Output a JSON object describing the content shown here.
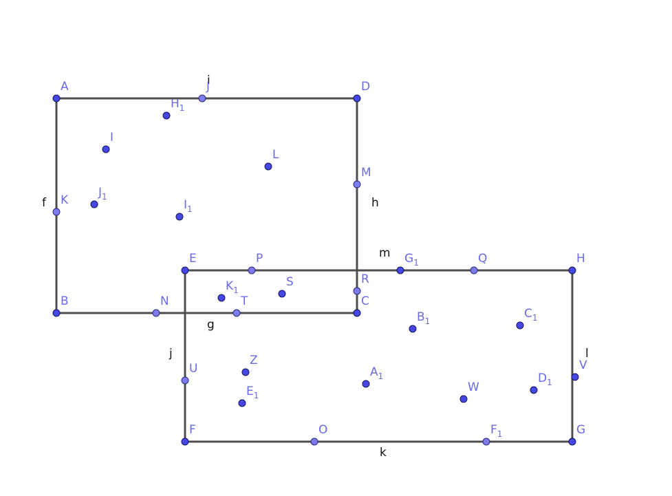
{
  "colors": {
    "segment": "#4d4d4d",
    "free_point": "#4747e6",
    "point_on_object": "#7c7cf0",
    "point_label": "#6a6ae8",
    "segment_label": "#111111"
  },
  "segments": {
    "f": "f",
    "h": "h",
    "i": "i",
    "g": "g",
    "j": "j",
    "k": "k",
    "l": "l",
    "m": "m"
  },
  "points": {
    "A": "A",
    "B": "B",
    "C": "C",
    "D": "D",
    "E": "E",
    "F": "F",
    "G": "G",
    "H": "H",
    "I": "I",
    "J": "J",
    "K": "K",
    "L": "L",
    "M": "M",
    "N": "N",
    "O": "O",
    "P": "P",
    "Q": "Q",
    "R": "R",
    "S": "S",
    "T": "T",
    "U": "U",
    "V": "V",
    "W": "W",
    "Z": "Z",
    "A1": "A",
    "B1": "B",
    "C1": "C",
    "D1": "D",
    "E1": "E",
    "F1": "F",
    "G1": "G",
    "H1": "H",
    "I1": "I",
    "J1": "J",
    "K1": "K",
    "sub": "1"
  }
}
